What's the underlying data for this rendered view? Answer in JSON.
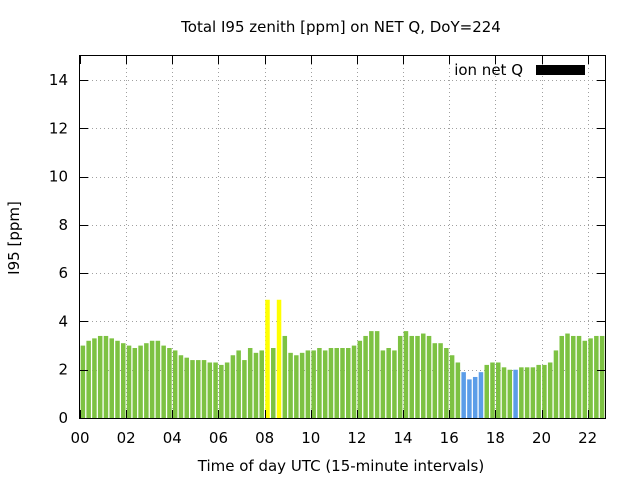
{
  "chart_data": {
    "type": "bar",
    "title": "Total I95 zenith [ppm] on NET Q, DoY=224",
    "xlabel": "Time of day UTC (15-minute intervals)",
    "ylabel": "I95 [ppm]",
    "ylim": [
      0,
      15
    ],
    "xlim": [
      0,
      22.75
    ],
    "x_ticks": [
      {
        "value": 0,
        "label": "00"
      },
      {
        "value": 2,
        "label": "02"
      },
      {
        "value": 4,
        "label": "04"
      },
      {
        "value": 6,
        "label": "06"
      },
      {
        "value": 8,
        "label": "08"
      },
      {
        "value": 10,
        "label": "10"
      },
      {
        "value": 12,
        "label": "12"
      },
      {
        "value": 14,
        "label": "14"
      },
      {
        "value": 16,
        "label": "16"
      },
      {
        "value": 18,
        "label": "18"
      },
      {
        "value": 20,
        "label": "20"
      },
      {
        "value": 22,
        "label": "22"
      }
    ],
    "y_ticks": [
      0,
      2,
      4,
      6,
      8,
      10,
      12,
      14
    ],
    "grid": true,
    "legend": {
      "position": "top-right",
      "label": "ion net Q",
      "color": "#000000"
    },
    "colors": {
      "green": "#7dc242",
      "yellow": "#ffff00",
      "blue": "#5b9de8"
    },
    "bar_interval_hours": 0.25,
    "x_start_hours": 0.125,
    "values": [
      3.0,
      3.2,
      3.3,
      3.4,
      3.4,
      3.3,
      3.2,
      3.1,
      3.0,
      2.9,
      3.0,
      3.1,
      3.2,
      3.2,
      3.0,
      2.9,
      2.8,
      2.6,
      2.5,
      2.4,
      2.4,
      2.4,
      2.3,
      2.3,
      2.2,
      2.3,
      2.6,
      2.8,
      2.4,
      2.9,
      2.7,
      2.8,
      4.9,
      2.9,
      4.9,
      3.4,
      2.7,
      2.6,
      2.7,
      2.8,
      2.8,
      2.9,
      2.8,
      2.9,
      2.9,
      2.9,
      2.9,
      3.0,
      3.2,
      3.4,
      3.6,
      3.6,
      2.8,
      2.9,
      2.8,
      3.4,
      3.6,
      3.4,
      3.4,
      3.5,
      3.4,
      3.1,
      3.1,
      2.9,
      2.6,
      2.3,
      1.9,
      1.6,
      1.7,
      1.9,
      2.2,
      2.3,
      2.3,
      2.1,
      2.0,
      2.0,
      2.1,
      2.1,
      2.1,
      2.2,
      2.2,
      2.3,
      2.8,
      3.4,
      3.5,
      3.4,
      3.4,
      3.2,
      3.3,
      3.4,
      3.4
    ],
    "bar_colors": [
      "green",
      "green",
      "green",
      "green",
      "green",
      "green",
      "green",
      "green",
      "green",
      "green",
      "green",
      "green",
      "green",
      "green",
      "green",
      "green",
      "green",
      "green",
      "green",
      "green",
      "green",
      "green",
      "green",
      "green",
      "green",
      "green",
      "green",
      "green",
      "green",
      "green",
      "green",
      "green",
      "yellow",
      "green",
      "yellow",
      "green",
      "green",
      "green",
      "green",
      "green",
      "green",
      "green",
      "green",
      "green",
      "green",
      "green",
      "green",
      "green",
      "green",
      "green",
      "green",
      "green",
      "green",
      "green",
      "green",
      "green",
      "green",
      "green",
      "green",
      "green",
      "green",
      "green",
      "green",
      "green",
      "green",
      "green",
      "blue",
      "blue",
      "blue",
      "blue",
      "green",
      "green",
      "green",
      "green",
      "green",
      "blue",
      "green",
      "green",
      "green",
      "green",
      "green",
      "green",
      "green",
      "green",
      "green",
      "green",
      "green",
      "green",
      "green",
      "green",
      "green"
    ]
  }
}
